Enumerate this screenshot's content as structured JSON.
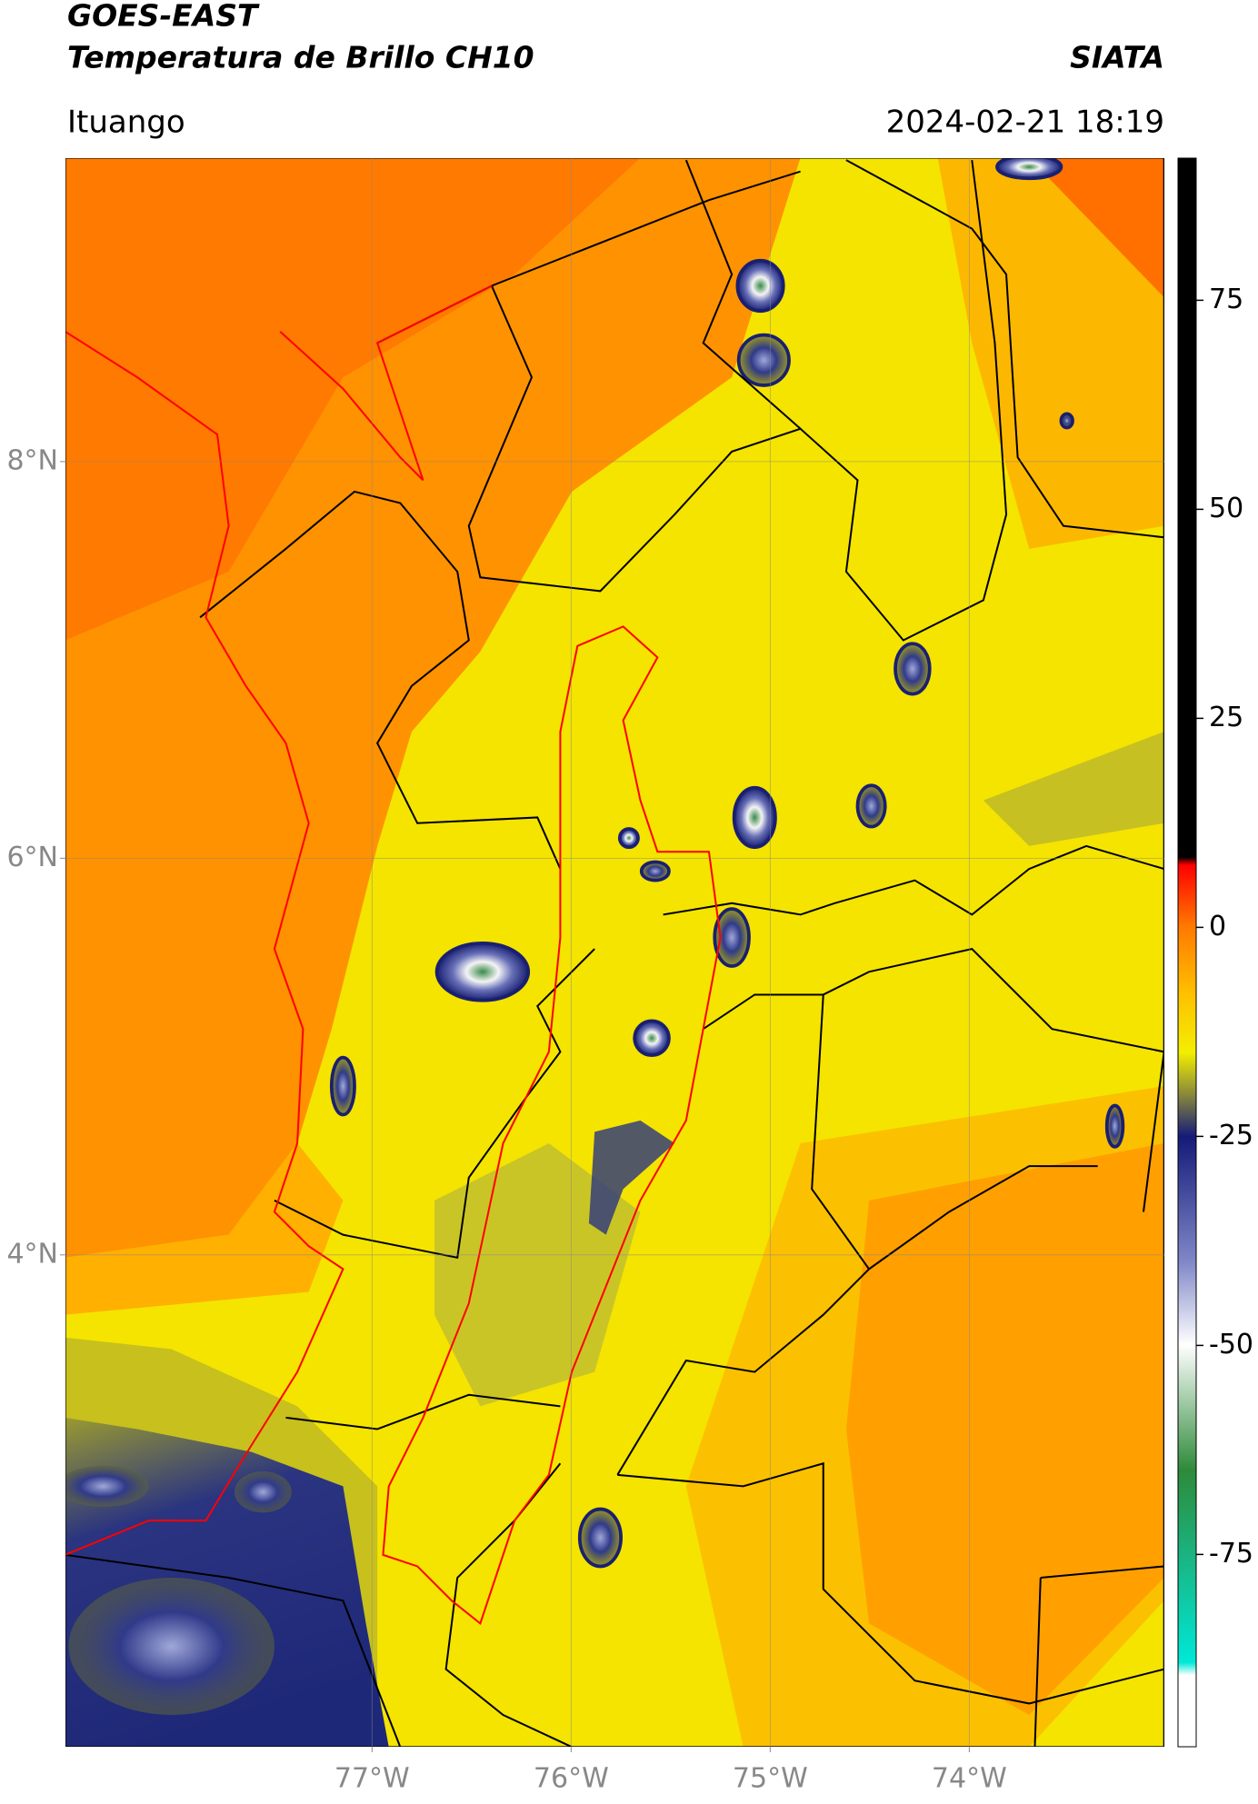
{
  "header": {
    "title": "GOES-EAST",
    "subtitle": "Temperatura de Brillo CH10",
    "source": "SIATA",
    "location": "Ituango",
    "datetime": "2024-02-21 18:19"
  },
  "map": {
    "lon_lim": [
      -78.54,
      -73.02
    ],
    "lat_lim": [
      1.52,
      9.53
    ],
    "lon_ticks": [
      {
        "value": -77,
        "label": "77°W"
      },
      {
        "value": -76,
        "label": "76°W"
      },
      {
        "value": -75,
        "label": "75°W"
      },
      {
        "value": -74,
        "label": "74°W"
      }
    ],
    "lat_ticks": [
      {
        "value": 8,
        "label": "8°N"
      },
      {
        "value": 6,
        "label": "6°N"
      },
      {
        "value": 4,
        "label": "4°N"
      }
    ],
    "grid": true
  },
  "colorbar": {
    "lim": [
      -98,
      92
    ],
    "ticks": [
      75,
      50,
      25,
      0,
      -25,
      -50,
      -75
    ]
  }
}
